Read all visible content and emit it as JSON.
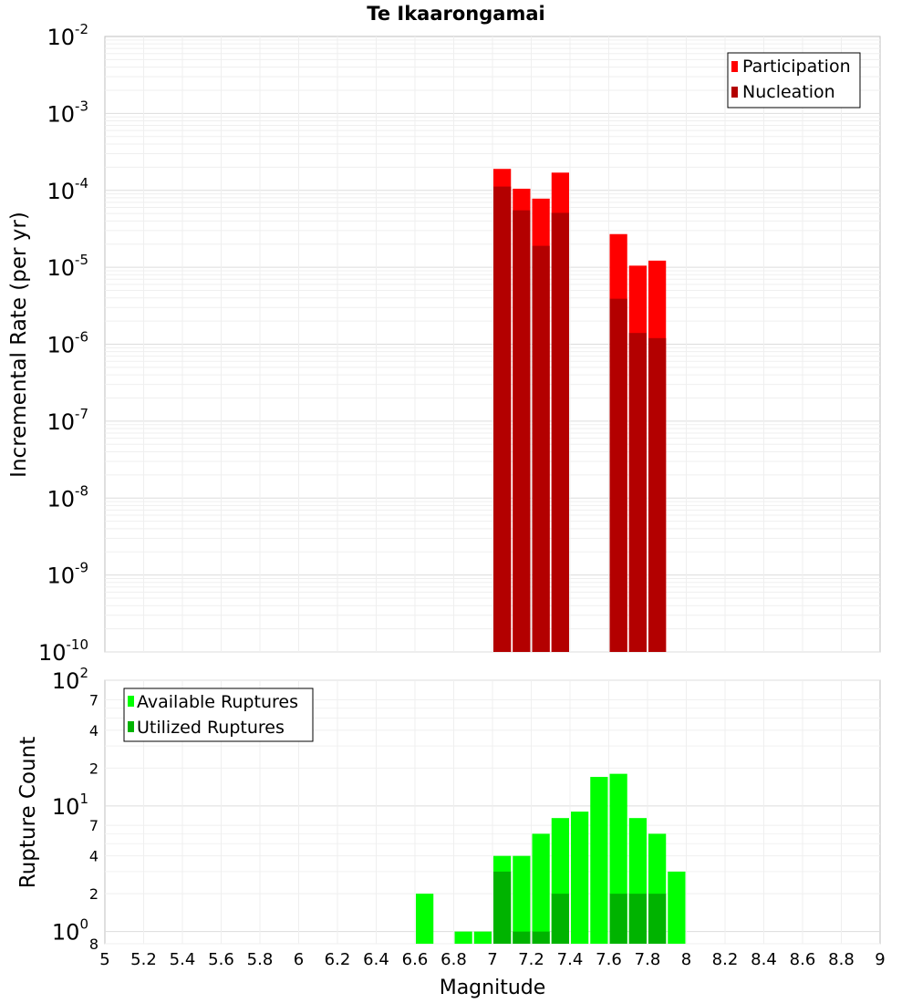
{
  "chart_data": [
    {
      "type": "bar",
      "title": "Te Ikaarongamai",
      "ylabel": "Incremental Rate (per yr)",
      "yscale": "log",
      "ylim": [
        1e-10,
        0.01
      ],
      "xlim": [
        5,
        9
      ],
      "grid": true,
      "legend_placement": "top-right",
      "y_ticks": [
        {
          "base": "10",
          "exp": "-2"
        },
        {
          "base": "10",
          "exp": "-3"
        },
        {
          "base": "10",
          "exp": "-4"
        },
        {
          "base": "10",
          "exp": "-5"
        },
        {
          "base": "10",
          "exp": "-6"
        },
        {
          "base": "10",
          "exp": "-7"
        },
        {
          "base": "10",
          "exp": "-8"
        },
        {
          "base": "10",
          "exp": "-9"
        },
        {
          "base": "10",
          "exp": "-10"
        }
      ],
      "series": [
        {
          "name": "Participation",
          "color": "#ff0000",
          "x": [
            7.05,
            7.15,
            7.25,
            7.35,
            7.65,
            7.75,
            7.85
          ],
          "values": [
            0.00019,
            0.000105,
            7.8e-05,
            0.00017,
            2.7e-05,
            1.05e-05,
            1.22e-05
          ]
        },
        {
          "name": "Nucleation",
          "color": "#b30000",
          "x": [
            7.05,
            7.15,
            7.25,
            7.35,
            7.65,
            7.75,
            7.85
          ],
          "values": [
            0.000112,
            5.5e-05,
            1.9e-05,
            5.1e-05,
            3.9e-06,
            1.4e-06,
            1.2e-06
          ]
        }
      ]
    },
    {
      "type": "bar",
      "xlabel": "Magnitude",
      "ylabel": "Rupture Count",
      "yscale": "log",
      "ylim": [
        0.8,
        100
      ],
      "xlim": [
        5,
        9
      ],
      "grid": true,
      "legend_placement": "top-left",
      "y_ticks": [
        {
          "value": 100,
          "base": "10",
          "exp": "2"
        },
        {
          "value": 70,
          "label": "7"
        },
        {
          "value": 40,
          "label": "4"
        },
        {
          "value": 20,
          "label": "2"
        },
        {
          "value": 10,
          "base": "10",
          "exp": "1"
        },
        {
          "value": 7,
          "label": "7"
        },
        {
          "value": 4,
          "label": "4"
        },
        {
          "value": 2,
          "label": "2"
        },
        {
          "value": 1,
          "base": "10",
          "exp": "0"
        },
        {
          "value": 0.8,
          "label": "8"
        }
      ],
      "x_ticks": [
        "5",
        "5.2",
        "5.4",
        "5.6",
        "5.8",
        "6",
        "6.2",
        "6.4",
        "6.6",
        "6.8",
        "7",
        "7.2",
        "7.4",
        "7.6",
        "7.8",
        "8",
        "8.2",
        "8.4",
        "8.6",
        "8.8",
        "9"
      ],
      "series": [
        {
          "name": "Available Ruptures",
          "color": "#00ff00",
          "x": [
            6.65,
            6.85,
            6.95,
            7.05,
            7.15,
            7.25,
            7.35,
            7.45,
            7.55,
            7.65,
            7.75,
            7.85,
            7.95
          ],
          "values": [
            2,
            1,
            1,
            4,
            4,
            6,
            8,
            9,
            17,
            18,
            8,
            6,
            3
          ]
        },
        {
          "name": "Utilized Ruptures",
          "color": "#00b300",
          "x": [
            7.05,
            7.15,
            7.25,
            7.35,
            7.65,
            7.75,
            7.85
          ],
          "values": [
            3,
            1,
            1,
            2,
            2,
            2,
            2
          ]
        }
      ]
    }
  ]
}
